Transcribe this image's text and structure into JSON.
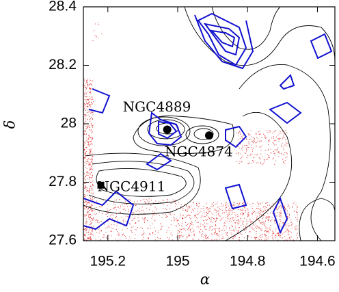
{
  "chart_data": {
    "type": "scatter",
    "xlabel": "α",
    "ylabel": "δ",
    "xlim": [
      195.27,
      194.55
    ],
    "ylim": [
      27.6,
      28.4
    ],
    "xticks": [
      195.2,
      195,
      194.8,
      194.6
    ],
    "yticks": [
      27.6,
      27.8,
      28,
      28.2,
      28.4
    ],
    "color": "#000000",
    "points": [
      {
        "label": "NGC4889",
        "x": 195.03,
        "y": 27.98,
        "marker": "circle"
      },
      {
        "label": "NGC4874",
        "x": 194.91,
        "y": 27.96,
        "marker": "circle"
      },
      {
        "label": "NGC4911",
        "x": 195.22,
        "y": 27.79,
        "marker": "square"
      }
    ]
  }
}
